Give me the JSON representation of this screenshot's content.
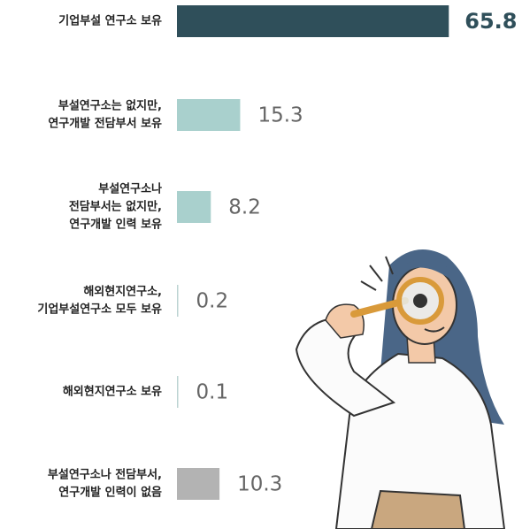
{
  "chart_data": {
    "type": "bar",
    "orientation": "horizontal",
    "categories": [
      [
        "기업부설 연구소 보유"
      ],
      [
        "부설연구소는 없지만,",
        "연구개발 전담부서 보유"
      ],
      [
        "부설연구소나",
        "전담부서는 없지만,",
        "연구개발 인력 보유"
      ],
      [
        "해외현지연구소,",
        "기업부설연구소 모두 보유"
      ],
      [
        "해외현지연구소 보유"
      ],
      [
        "부설연구소나 전담부서,",
        "연구개발 인력이 없음"
      ]
    ],
    "values": [
      65.8,
      15.3,
      8.2,
      0.2,
      0.1,
      10.3
    ],
    "colors": [
      "#2f4f5a",
      "#a9d0cd",
      "#a9d0cd",
      "#bcd3d2",
      "#bcd3d2",
      "#b3b3b3"
    ]
  }
}
